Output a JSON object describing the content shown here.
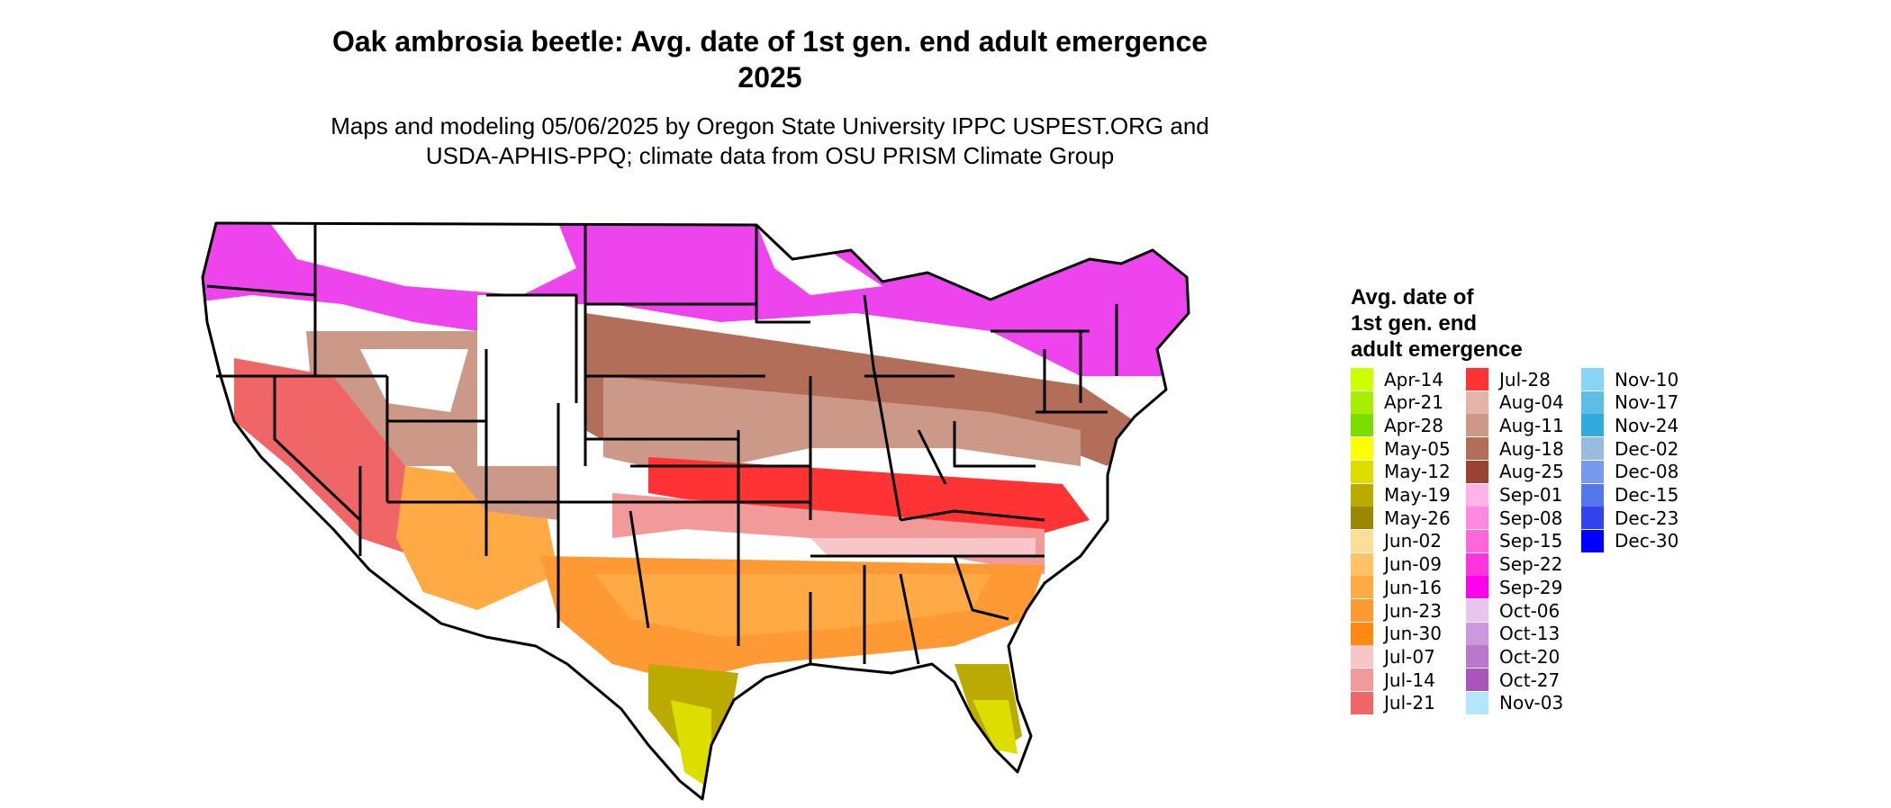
{
  "title_line1": "Oak ambrosia beetle: Avg. date of 1st gen. end adult emergence",
  "title_line2": "2025",
  "subtitle_line1": "Maps and modeling 05/06/2025 by Oregon State University IPPC USPEST.ORG and",
  "subtitle_line2": "USDA-APHIS-PPQ; climate data from OSU PRISM Climate Group",
  "legend": {
    "title_line1": "Avg. date of",
    "title_line2": "1st gen. end",
    "title_line3": "adult emergence",
    "items": [
      {
        "label": "Apr-14",
        "color": "#ccff00"
      },
      {
        "label": "Apr-21",
        "color": "#a8ee00"
      },
      {
        "label": "Apr-28",
        "color": "#7cdd00"
      },
      {
        "label": "May-05",
        "color": "#ffff00"
      },
      {
        "label": "May-12",
        "color": "#dddd00"
      },
      {
        "label": "May-19",
        "color": "#bbaa00"
      },
      {
        "label": "May-26",
        "color": "#998800"
      },
      {
        "label": "Jun-02",
        "color": "#ffdd99"
      },
      {
        "label": "Jun-09",
        "color": "#ffc266"
      },
      {
        "label": "Jun-16",
        "color": "#ffaa44"
      },
      {
        "label": "Jun-23",
        "color": "#ff9933"
      },
      {
        "label": "Jun-30",
        "color": "#ff8811"
      },
      {
        "label": "Jul-07",
        "color": "#f7c6c6"
      },
      {
        "label": "Jul-14",
        "color": "#f29a9a"
      },
      {
        "label": "Jul-21",
        "color": "#f06666"
      },
      {
        "label": "Jul-28",
        "color": "#ff3333"
      },
      {
        "label": "Aug-04",
        "color": "#e6b3a8"
      },
      {
        "label": "Aug-11",
        "color": "#cc9988"
      },
      {
        "label": "Aug-18",
        "color": "#b36e5a"
      },
      {
        "label": "Aug-25",
        "color": "#994433"
      },
      {
        "label": "Sep-01",
        "color": "#ffb3e6"
      },
      {
        "label": "Sep-08",
        "color": "#ff88e0"
      },
      {
        "label": "Sep-15",
        "color": "#ff66dd"
      },
      {
        "label": "Sep-22",
        "color": "#ff33dd"
      },
      {
        "label": "Sep-29",
        "color": "#ff00ee"
      },
      {
        "label": "Oct-06",
        "color": "#e6c6ee"
      },
      {
        "label": "Oct-13",
        "color": "#cc99dd"
      },
      {
        "label": "Oct-20",
        "color": "#bb77cc"
      },
      {
        "label": "Oct-27",
        "color": "#aa55bb"
      },
      {
        "label": "Nov-03",
        "color": "#b3e6ff"
      },
      {
        "label": "Nov-10",
        "color": "#88d4f4"
      },
      {
        "label": "Nov-17",
        "color": "#5cbde6"
      },
      {
        "label": "Nov-24",
        "color": "#33aadd"
      },
      {
        "label": "Dec-02",
        "color": "#99bbdd"
      },
      {
        "label": "Dec-08",
        "color": "#7799ee"
      },
      {
        "label": "Dec-15",
        "color": "#5577ee"
      },
      {
        "label": "Dec-23",
        "color": "#3344ee"
      },
      {
        "label": "Dec-30",
        "color": "#0000ff"
      }
    ]
  }
}
